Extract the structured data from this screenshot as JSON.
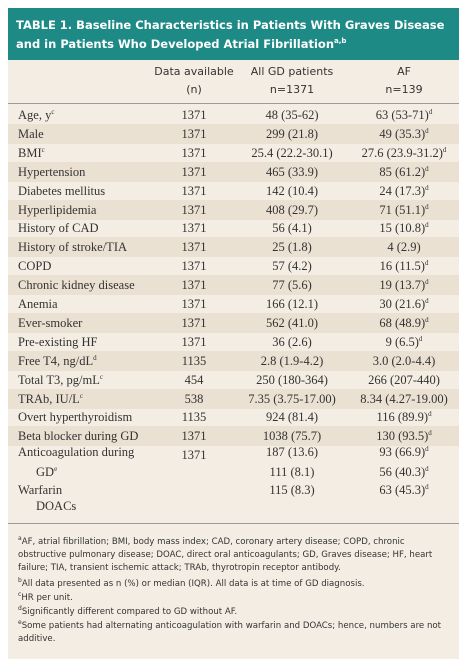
{
  "title": "TABLE 1. Baseline Characteristics in Patients With Graves Disease and in Patients Who Developed Atrial Fibrillation",
  "title_sup": "a,b",
  "headers": {
    "col1_line1": "Data available",
    "col1_line2": "(n)",
    "col2_line1": "All GD patients",
    "col2_line2": "n=1371",
    "col3_line1": "AF",
    "col3_line2": "n=139"
  },
  "rows": [
    {
      "label": "Age, y",
      "label_sup": "c",
      "n": "1371",
      "all": "48 (35-62)",
      "af": "63 (53-71)",
      "af_sup": "d"
    },
    {
      "label": "Male",
      "label_sup": "",
      "n": "1371",
      "all": "299 (21.8)",
      "af": "49 (35.3)",
      "af_sup": "d"
    },
    {
      "label": "BMI",
      "label_sup": "c",
      "n": "1371",
      "all": "25.4 (22.2-30.1)",
      "af": "27.6 (23.9-31.2)",
      "af_sup": "d"
    },
    {
      "label": "Hypertension",
      "label_sup": "",
      "n": "1371",
      "all": "465 (33.9)",
      "af": "85 (61.2)",
      "af_sup": "d"
    },
    {
      "label": "Diabetes mellitus",
      "label_sup": "",
      "n": "1371",
      "all": "142 (10.4)",
      "af": "24 (17.3)",
      "af_sup": "d"
    },
    {
      "label": "Hyperlipidemia",
      "label_sup": "",
      "n": "1371",
      "all": "408 (29.7)",
      "af": "71 (51.1)",
      "af_sup": "d"
    },
    {
      "label": "History of CAD",
      "label_sup": "",
      "n": "1371",
      "all": "56 (4.1)",
      "af": "15 (10.8)",
      "af_sup": "d"
    },
    {
      "label": "History of stroke/TIA",
      "label_sup": "",
      "n": "1371",
      "all": "25 (1.8)",
      "af": "4 (2.9)",
      "af_sup": ""
    },
    {
      "label": "COPD",
      "label_sup": "",
      "n": "1371",
      "all": "57 (4.2)",
      "af": "16 (11.5)",
      "af_sup": "d"
    },
    {
      "label": "Chronic kidney disease",
      "label_sup": "",
      "n": "1371",
      "all": "77 (5.6)",
      "af": "19 (13.7)",
      "af_sup": "d"
    },
    {
      "label": "Anemia",
      "label_sup": "",
      "n": "1371",
      "all": "166 (12.1)",
      "af": "30 (21.6)",
      "af_sup": "d"
    },
    {
      "label": "Ever-smoker",
      "label_sup": "",
      "n": "1371",
      "all": "562 (41.0)",
      "af": "68 (48.9)",
      "af_sup": "d"
    },
    {
      "label": "Pre-existing HF",
      "label_sup": "",
      "n": "1371",
      "all": "36 (2.6)",
      "af": "9 (6.5)",
      "af_sup": "d"
    },
    {
      "label": "Free T4, ng/dL",
      "label_sup": "d",
      "n": "1135",
      "all": "2.8 (1.9-4.2)",
      "af": "3.0 (2.0-4.4)",
      "af_sup": ""
    },
    {
      "label": "Total T3, pg/mL",
      "label_sup": "c",
      "n": "454",
      "all": "250 (180-364)",
      "af": "266 (207-440)",
      "af_sup": ""
    },
    {
      "label": "TRAb, IU/L",
      "label_sup": "c",
      "n": "538",
      "all": "7.35 (3.75-17.00)",
      "af": "8.34 (4.27-19.00)",
      "af_sup": ""
    },
    {
      "label": "Overt hyperthyroidism",
      "label_sup": "",
      "n": "1135",
      "all": "924 (81.4)",
      "af": "116 (89.9)",
      "af_sup": "d"
    },
    {
      "label": "Beta blocker during GD",
      "label_sup": "",
      "n": "1371",
      "all": "1038 (75.7)",
      "af": "130 (93.5)",
      "af_sup": "d"
    }
  ],
  "anticoag": {
    "label_line1": "Anticoagulation during",
    "label_line2": "GD",
    "label_sup": "e",
    "n": "1371",
    "all_line1": "187 (13.6)",
    "all_line2": "111 (8.1)",
    "af_line1": "93 (66.9)",
    "af_line2": "56 (40.3)",
    "af_sup": "d"
  },
  "warfarin": {
    "label_line1": "Warfarin",
    "label_line2": "DOACs",
    "all": "115 (8.3)",
    "af": "63 (45.3)",
    "af_sup": "d"
  },
  "footnotes": {
    "a_sup": "a",
    "a": "AF, atrial fibrillation; BMI, body mass index; CAD, coronary artery disease; COPD, chronic obstructive pulmonary disease; DOAC, direct oral anticoagulants; GD, Graves disease; HF, heart failure; TIA, transient ischemic attack; TRAb, thyrotropin receptor antibody.",
    "b_sup": "b",
    "b": "All data presented as n (%) or median (IQR). All data is at time of GD diagnosis.",
    "c_sup": "c",
    "c": "HR per unit.",
    "d_sup": "d",
    "d": "Significantly different compared to GD without AF.",
    "e_sup": "e",
    "e": "Some patients had alternating anticoagulation with warfarin and DOACs; hence, numbers are not additive."
  },
  "colors": {
    "header_bg": "#1d8a86",
    "panel_bg": "#f4ede3",
    "stripe_bg": "#ebe1d2"
  }
}
